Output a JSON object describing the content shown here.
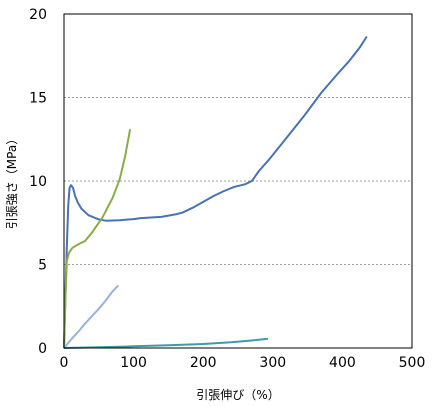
{
  "chart_data": {
    "type": "line",
    "xlabel": "引張伸び（%）",
    "ylabel": "引張強さ（MPa）",
    "xlim": [
      0,
      500
    ],
    "ylim": [
      0,
      20
    ],
    "x_ticks": [
      "0",
      "100",
      "200",
      "300",
      "400",
      "500"
    ],
    "y_ticks": [
      "0",
      "5",
      "10",
      "15",
      "20"
    ],
    "grid": "horizontal dashed at y = 5, 10, 15",
    "legend": "none",
    "series": [
      {
        "color": "#4a72b0",
        "points": [
          [
            0,
            0
          ],
          [
            2,
            3
          ],
          [
            4,
            6
          ],
          [
            6,
            8.5
          ],
          [
            8,
            9.6
          ],
          [
            10,
            9.75
          ],
          [
            13,
            9.6
          ],
          [
            16,
            9.1
          ],
          [
            20,
            8.7
          ],
          [
            25,
            8.35
          ],
          [
            35,
            7.95
          ],
          [
            50,
            7.7
          ],
          [
            60,
            7.62
          ],
          [
            80,
            7.65
          ],
          [
            100,
            7.72
          ],
          [
            110,
            7.78
          ],
          [
            140,
            7.85
          ],
          [
            160,
            8.0
          ],
          [
            170,
            8.1
          ],
          [
            185,
            8.4
          ],
          [
            200,
            8.75
          ],
          [
            215,
            9.1
          ],
          [
            230,
            9.4
          ],
          [
            245,
            9.65
          ],
          [
            260,
            9.8
          ],
          [
            270,
            10.0
          ],
          [
            280,
            10.6
          ],
          [
            295,
            11.3
          ],
          [
            320,
            12.6
          ],
          [
            345,
            13.9
          ],
          [
            370,
            15.3
          ],
          [
            395,
            16.5
          ],
          [
            410,
            17.2
          ],
          [
            425,
            18.0
          ],
          [
            435,
            18.65
          ]
        ]
      },
      {
        "color": "#8aac46",
        "points": [
          [
            0,
            0
          ],
          [
            2,
            3
          ],
          [
            4,
            5.2
          ],
          [
            7,
            5.7
          ],
          [
            12,
            6.0
          ],
          [
            20,
            6.2
          ],
          [
            30,
            6.4
          ],
          [
            40,
            6.9
          ],
          [
            55,
            7.8
          ],
          [
            70,
            9.0
          ],
          [
            80,
            10.1
          ],
          [
            88,
            11.5
          ],
          [
            95,
            13.1
          ]
        ]
      },
      {
        "color": "#98b3d8",
        "points": [
          [
            0,
            0
          ],
          [
            10,
            0.5
          ],
          [
            20,
            0.95
          ],
          [
            30,
            1.45
          ],
          [
            40,
            1.9
          ],
          [
            50,
            2.35
          ],
          [
            60,
            2.85
          ],
          [
            70,
            3.4
          ],
          [
            78,
            3.75
          ]
        ]
      },
      {
        "color": "#3f9aa8",
        "points": [
          [
            0,
            0
          ],
          [
            50,
            0.04
          ],
          [
            100,
            0.1
          ],
          [
            150,
            0.16
          ],
          [
            200,
            0.24
          ],
          [
            240,
            0.34
          ],
          [
            270,
            0.45
          ],
          [
            293,
            0.55
          ]
        ]
      }
    ]
  }
}
